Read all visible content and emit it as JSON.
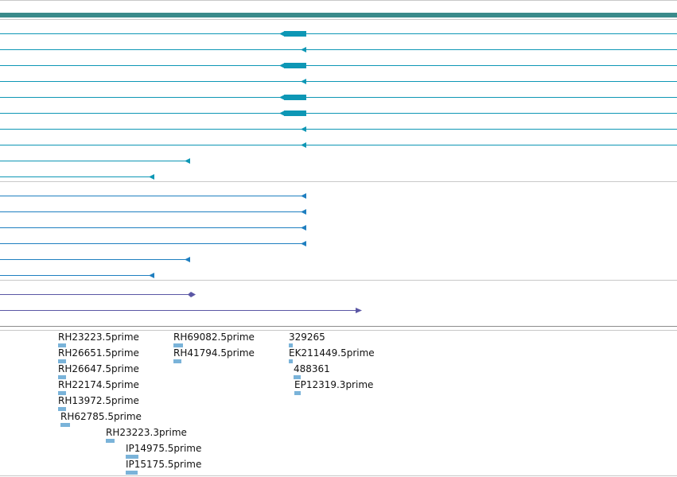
{
  "colors": {
    "gene_model": "#0e97b5",
    "mrna": "#1f7fc0",
    "protein": "#5b57a5",
    "est": "#7ab3d9",
    "header_bar": "#3a8b8b",
    "separator": "#c8c8c8"
  },
  "tracks": {
    "gene_models": {
      "feature_count": 10
    },
    "mrna_alignments": {
      "feature_count": 6
    },
    "protein_alignments": {
      "feature_count": 2
    }
  },
  "est_labels": [
    "RH23223.5prime",
    "RH26651.5prime",
    "RH26647.5prime",
    "RH22174.5prime",
    "RH13972.5prime",
    "RH62785.5prime",
    "RH23223.3prime",
    "IP14975.5prime",
    "IP15175.5prime",
    "RH69082.5prime",
    "RH41794.5prime",
    "329265",
    "EK211449.5prime",
    "488361",
    "EP12319.3prime"
  ]
}
